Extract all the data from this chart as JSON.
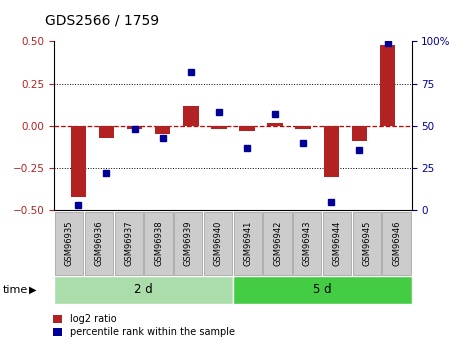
{
  "title": "GDS2566 / 1759",
  "samples": [
    "GSM96935",
    "GSM96936",
    "GSM96937",
    "GSM96938",
    "GSM96939",
    "GSM96940",
    "GSM96941",
    "GSM96942",
    "GSM96943",
    "GSM96944",
    "GSM96945",
    "GSM96946"
  ],
  "log2_ratio": [
    -0.42,
    -0.07,
    -0.02,
    -0.05,
    0.12,
    -0.02,
    -0.03,
    0.02,
    -0.02,
    -0.3,
    -0.09,
    0.48
  ],
  "percentile_rank": [
    3,
    22,
    48,
    43,
    82,
    58,
    37,
    57,
    40,
    5,
    36,
    99
  ],
  "groups": [
    {
      "label": "2 d",
      "start": 0,
      "end": 6
    },
    {
      "label": "5 d",
      "start": 6,
      "end": 12
    }
  ],
  "ylim_left": [
    -0.5,
    0.5
  ],
  "ylim_right": [
    0,
    100
  ],
  "yticks_left": [
    -0.5,
    -0.25,
    0,
    0.25,
    0.5
  ],
  "yticks_right": [
    0,
    25,
    50,
    75,
    100
  ],
  "bar_color": "#B22222",
  "dot_color": "#000099",
  "hline_color": "#CC0000",
  "legend_items": [
    "log2 ratio",
    "percentile rank within the sample"
  ],
  "legend_colors": [
    "#B22222",
    "#000099"
  ],
  "time_label": "time",
  "group_colors": [
    "#aaddaa",
    "#44cc44"
  ],
  "label_box_color": "#CCCCCC",
  "label_box_edge": "#999999"
}
